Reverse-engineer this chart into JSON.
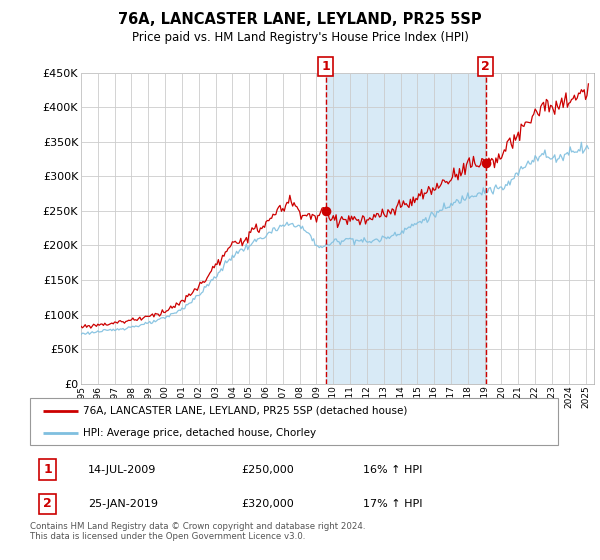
{
  "title": "76A, LANCASTER LANE, LEYLAND, PR25 5SP",
  "subtitle": "Price paid vs. HM Land Registry's House Price Index (HPI)",
  "legend_line1": "76A, LANCASTER LANE, LEYLAND, PR25 5SP (detached house)",
  "legend_line2": "HPI: Average price, detached house, Chorley",
  "transaction1_date": "14-JUL-2009",
  "transaction1_price": "£250,000",
  "transaction1_hpi": "16% ↑ HPI",
  "transaction2_date": "25-JAN-2019",
  "transaction2_price": "£320,000",
  "transaction2_hpi": "17% ↑ HPI",
  "footer": "Contains HM Land Registry data © Crown copyright and database right 2024.\nThis data is licensed under the Open Government Licence v3.0.",
  "ylim": [
    0,
    450000
  ],
  "yticks": [
    0,
    50000,
    100000,
    150000,
    200000,
    250000,
    300000,
    350000,
    400000,
    450000
  ],
  "ytick_labels": [
    "£0",
    "£50K",
    "£100K",
    "£150K",
    "£200K",
    "£250K",
    "£300K",
    "£350K",
    "£400K",
    "£450K"
  ],
  "hpi_color": "#7fbfdf",
  "price_color": "#cc0000",
  "marker1_year": 2009.54,
  "marker1_price": 250000,
  "marker2_year": 2019.07,
  "marker2_price": 320000,
  "shade_color": "#d8eaf6",
  "background_color": "#ffffff",
  "plot_bg_color": "#ffffff",
  "grid_color": "#cccccc",
  "hpi_key_years": [
    1995.0,
    1996.0,
    1997.0,
    1998.0,
    1999.0,
    2000.0,
    2001.0,
    2002.0,
    2003.0,
    2004.0,
    2005.0,
    2006.0,
    2007.0,
    2007.75,
    2008.5,
    2009.0,
    2009.5,
    2010.0,
    2010.5,
    2011.0,
    2012.0,
    2013.0,
    2014.0,
    2015.0,
    2016.0,
    2017.0,
    2018.0,
    2019.0,
    2020.0,
    2020.5,
    2021.0,
    2021.5,
    2022.0,
    2022.5,
    2023.0,
    2023.5,
    2024.0,
    2024.5,
    2025.0
  ],
  "hpi_key_vals": [
    72000,
    75000,
    78000,
    82000,
    87000,
    95000,
    108000,
    128000,
    155000,
    185000,
    200000,
    215000,
    228000,
    232000,
    218000,
    200000,
    198000,
    205000,
    208000,
    210000,
    205000,
    210000,
    220000,
    232000,
    245000,
    258000,
    272000,
    280000,
    282000,
    290000,
    305000,
    318000,
    328000,
    332000,
    325000,
    328000,
    335000,
    340000,
    342000
  ],
  "prop_key_years": [
    1995.0,
    1996.0,
    1997.0,
    1998.0,
    1999.0,
    2000.0,
    2001.0,
    2002.0,
    2003.0,
    2004.0,
    2005.0,
    2006.0,
    2007.0,
    2007.5,
    2008.0,
    2009.0,
    2009.54,
    2010.0,
    2011.0,
    2012.0,
    2013.0,
    2014.0,
    2015.0,
    2016.0,
    2017.0,
    2018.0,
    2019.07,
    2020.0,
    2021.0,
    2022.0,
    2022.5,
    2023.0,
    2023.5,
    2024.0,
    2024.5,
    2025.0
  ],
  "prop_key_vals": [
    82000,
    85000,
    88000,
    92000,
    97000,
    105000,
    118000,
    140000,
    170000,
    200000,
    215000,
    232000,
    256000,
    265000,
    248000,
    240000,
    250000,
    238000,
    238000,
    235000,
    245000,
    255000,
    268000,
    282000,
    298000,
    318000,
    320000,
    330000,
    360000,
    390000,
    408000,
    395000,
    400000,
    410000,
    418000,
    420000
  ],
  "noise_hpi": 0.012,
  "noise_prop": 0.018
}
